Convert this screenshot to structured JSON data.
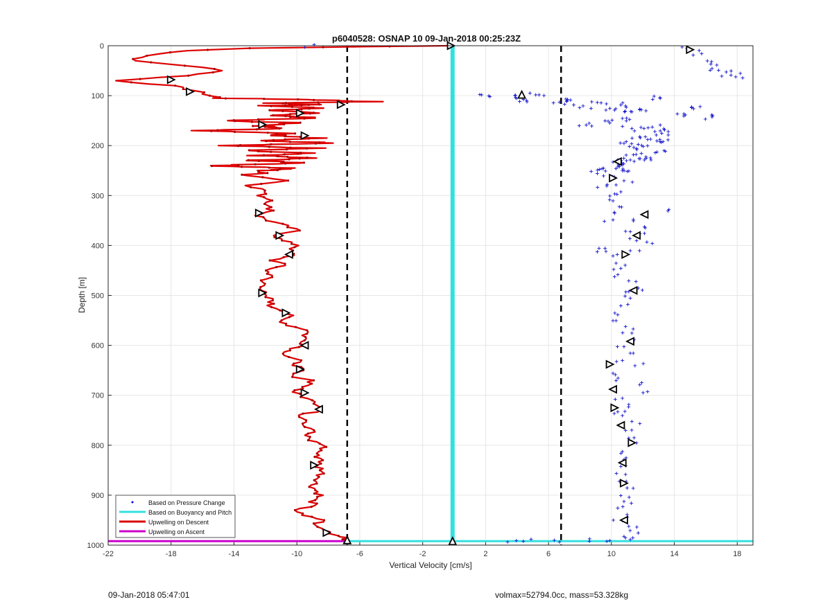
{
  "chart_data": {
    "type": "line",
    "title": "p6040528: OSNAP 10 09-Jan-2018 00:25:23Z",
    "xlabel": "Vertical Velocity [cm/s]",
    "ylabel": "Depth [m]",
    "xlim": [
      -22,
      19
    ],
    "ylim": [
      0,
      1000
    ],
    "y_reversed": true,
    "xticks": [
      -22,
      -18,
      -14,
      -10,
      -6,
      -2,
      2,
      6,
      10,
      14,
      18
    ],
    "yticks": [
      0,
      100,
      200,
      300,
      400,
      500,
      600,
      700,
      800,
      900,
      1000
    ],
    "grid": true,
    "legend": {
      "location": "bottom-left",
      "entries": [
        {
          "label": "Based on Pressure Change",
          "color": "#0000cc",
          "style": "dot"
        },
        {
          "label": "Based on Buoyancy and Pitch",
          "color": "#33e0e0",
          "style": "line"
        },
        {
          "label": "Upwelling on Descent",
          "color": "#dd0000",
          "style": "line"
        },
        {
          "label": "Upwelling on Ascent",
          "color": "#cc00cc",
          "style": "line"
        }
      ]
    },
    "threshold_lines": [
      {
        "x": -6.8,
        "style": "dashed",
        "color": "#000000"
      },
      {
        "x": 6.8,
        "style": "dashed",
        "color": "#000000"
      }
    ],
    "buoyancy_pitch": {
      "descent": {
        "x": [
          -0.1,
          -0.1
        ],
        "y": [
          0,
          993
        ]
      },
      "bottom": {
        "x": [
          -7,
          19
        ],
        "y": [
          992,
          992
        ]
      }
    },
    "upwelling_descent": {
      "depth": [
        0,
        2,
        5,
        10,
        20,
        30,
        40,
        50,
        60,
        70,
        80,
        90,
        100,
        105,
        108,
        112,
        115,
        118,
        120,
        125,
        130,
        135,
        140,
        145,
        150,
        155,
        160,
        165,
        170,
        175,
        180,
        185,
        190,
        195,
        200,
        205,
        210,
        215,
        220,
        225,
        230,
        235,
        240,
        245,
        250,
        260,
        270,
        280,
        290,
        300,
        310,
        320,
        330,
        340,
        350,
        360,
        370,
        380,
        390,
        400,
        410,
        420,
        430,
        440,
        450,
        460,
        470,
        480,
        490,
        500,
        510,
        520,
        530,
        540,
        550,
        560,
        570,
        580,
        590,
        600,
        610,
        620,
        630,
        640,
        650,
        660,
        670,
        680,
        690,
        700,
        710,
        720,
        730,
        740,
        750,
        760,
        770,
        780,
        790,
        800,
        810,
        820,
        830,
        840,
        850,
        860,
        870,
        880,
        890,
        900,
        910,
        920,
        930,
        940,
        950,
        960,
        970,
        980,
        985,
        990
      ],
      "velocity": [
        -0.3,
        -6,
        -13,
        -17,
        -19.5,
        -20.5,
        -17,
        -14.5,
        -17,
        -21.5,
        -18,
        -16.5,
        -15.5,
        -15,
        -9,
        -5.2,
        -12,
        -7.8,
        -12.2,
        -8.2,
        -12,
        -8.8,
        -11.5,
        -8.6,
        -15,
        -9.5,
        -12.8,
        -10.2,
        -16,
        -10.5,
        -11,
        -8.5,
        -12.5,
        -7,
        -14.8,
        -8.8,
        -13.8,
        -9.5,
        -12.5,
        -9.2,
        -13,
        -9.2,
        -15.5,
        -10.5,
        -12,
        -13,
        -10.5,
        -13,
        -12,
        -12.3,
        -11.5,
        -12,
        -11.5,
        -12.5,
        -11.8,
        -10.8,
        -10,
        -11.3,
        -11,
        -9.8,
        -10.5,
        -10.3,
        -11.5,
        -10.8,
        -12,
        -11.5,
        -12.3,
        -12,
        -12.2,
        -12.2,
        -11.5,
        -11.8,
        -10.8,
        -10.5,
        -11,
        -10.5,
        -9.2,
        -9.5,
        -9.5,
        -9.5,
        -10.5,
        -10.7,
        -10,
        -10,
        -9.8,
        -10.5,
        -9,
        -9.2,
        -10.2,
        -9.8,
        -8.8,
        -8.6,
        -8.5,
        -9.8,
        -9.2,
        -9.5,
        -8.8,
        -9.5,
        -9.2,
        -8.2,
        -8.5,
        -8.8,
        -8.3,
        -8.8,
        -8.3,
        -8.5,
        -8.6,
        -9,
        -8.8,
        -8.5,
        -9,
        -9,
        -10,
        -9.8,
        -8.2,
        -9,
        -8.2,
        -7.5,
        -6.8,
        -6.8
      ]
    },
    "pressure_change_points": {
      "x": [
        15,
        14.8,
        15.2,
        16.1,
        16.4,
        17.3,
        17.6,
        17.9,
        18.2,
        16.7,
        -9.5,
        2.2,
        3.9,
        4.4,
        5.4,
        6.7,
        7.4,
        8.2,
        9.1,
        9.9,
        10.6,
        11.3,
        12.2,
        13.1,
        14.6,
        15.1,
        16.4,
        8.4,
        9.6,
        10.7,
        11.3,
        12.6,
        13.2,
        11.8,
        12.9,
        10.8,
        11.6,
        12.3,
        12.9,
        13.6,
        11.4,
        12.2,
        13.1,
        10.1,
        10.7,
        11.2,
        12.2,
        9.5,
        10.4,
        11.1,
        10.2,
        10.8,
        9.1,
        9.7,
        10.3,
        10.6,
        9.9,
        10.1,
        10.5,
        10.2,
        10.1,
        11.4,
        12.1,
        13.6,
        11.2,
        12.1,
        11.6,
        12.6,
        9.1,
        9.6,
        10.1,
        11.2,
        10.3,
        10.6,
        10.2,
        11.1,
        11.7,
        11.1,
        11.2,
        10.6,
        10.4,
        10.3,
        10.9,
        11.3,
        11.4,
        10.8,
        11.2,
        10.7,
        11.5,
        10.1,
        10.3,
        11.8,
        12.3,
        10.7,
        11.1,
        10.4,
        10.7,
        11.3,
        10.9,
        11.1,
        11.6,
        10.7,
        10.8,
        10.6,
        10.9,
        10.5,
        11.0,
        10.6,
        10.8,
        10.4,
        11.0,
        10.7,
        11.1,
        11.7,
        10.8,
        11.2,
        3.4,
        4.4,
        6.7,
        8.6,
        9.9
      ],
      "y": [
        8,
        5,
        18,
        30,
        45,
        52,
        58,
        62,
        55,
        38,
        2,
        100,
        103,
        107,
        98,
        112,
        108,
        120,
        113,
        125,
        118,
        132,
        130,
        105,
        140,
        122,
        142,
        158,
        150,
        145,
        165,
        162,
        175,
        182,
        190,
        195,
        205,
        200,
        212,
        188,
        218,
        225,
        170,
        232,
        238,
        228,
        222,
        245,
        242,
        250,
        262,
        270,
        255,
        280,
        278,
        292,
        300,
        310,
        322,
        335,
        348,
        350,
        362,
        330,
        372,
        375,
        390,
        395,
        412,
        405,
        420,
        410,
        435,
        445,
        462,
        470,
        485,
        492,
        505,
        520,
        538,
        550,
        562,
        575,
        590,
        602,
        615,
        630,
        640,
        655,
        670,
        678,
        692,
        705,
        718,
        732,
        740,
        752,
        770,
        785,
        795,
        812,
        828,
        842,
        858,
        872,
        885,
        900,
        912,
        925,
        938,
        950,
        962,
        975,
        982,
        988,
        993,
        992,
        993,
        992,
        990
      ],
      "pattern": "a smaller random jitter is added to each point so that it looks like a cloud"
    },
    "markers": [
      {
        "x": -0.2,
        "y": 0,
        "dir": "right"
      },
      {
        "x": 4.3,
        "y": 98,
        "dir": "up"
      },
      {
        "x": 15,
        "y": 8,
        "dir": "right"
      },
      {
        "x": -18,
        "y": 68,
        "dir": "right"
      },
      {
        "x": -16.8,
        "y": 92,
        "dir": "right"
      },
      {
        "x": -7.2,
        "y": 118,
        "dir": "right"
      },
      {
        "x": -9.8,
        "y": 135,
        "dir": "right"
      },
      {
        "x": -12.2,
        "y": 158,
        "dir": "right"
      },
      {
        "x": -9.5,
        "y": 180,
        "dir": "right"
      },
      {
        "x": -12.4,
        "y": 335,
        "dir": "right"
      },
      {
        "x": -11.1,
        "y": 380,
        "dir": "right"
      },
      {
        "x": -10.5,
        "y": 418,
        "dir": "left"
      },
      {
        "x": -12.2,
        "y": 495,
        "dir": "right"
      },
      {
        "x": -10.7,
        "y": 535,
        "dir": "right"
      },
      {
        "x": -9.5,
        "y": 600,
        "dir": "left"
      },
      {
        "x": -9.8,
        "y": 648,
        "dir": "right"
      },
      {
        "x": -9.5,
        "y": 695,
        "dir": "right"
      },
      {
        "x": -8.6,
        "y": 728,
        "dir": "left"
      },
      {
        "x": -8.9,
        "y": 840,
        "dir": "right"
      },
      {
        "x": -8.1,
        "y": 975,
        "dir": "right"
      },
      {
        "x": -6.8,
        "y": 990,
        "dir": "up"
      },
      {
        "x": -0.1,
        "y": 992,
        "dir": "up"
      },
      {
        "x": 10.4,
        "y": 232,
        "dir": "left"
      },
      {
        "x": 10.1,
        "y": 265,
        "dir": "right"
      },
      {
        "x": 12.1,
        "y": 338,
        "dir": "left"
      },
      {
        "x": 11.6,
        "y": 380,
        "dir": "left"
      },
      {
        "x": 10.9,
        "y": 418,
        "dir": "right"
      },
      {
        "x": 11.4,
        "y": 490,
        "dir": "left"
      },
      {
        "x": 11.2,
        "y": 592,
        "dir": "left"
      },
      {
        "x": 9.9,
        "y": 638,
        "dir": "right"
      },
      {
        "x": 10.1,
        "y": 688,
        "dir": "left"
      },
      {
        "x": 10.2,
        "y": 725,
        "dir": "right"
      },
      {
        "x": 10.6,
        "y": 760,
        "dir": "left"
      },
      {
        "x": 11.3,
        "y": 795,
        "dir": "right"
      },
      {
        "x": 10.7,
        "y": 835,
        "dir": "left"
      },
      {
        "x": 10.8,
        "y": 876,
        "dir": "right"
      },
      {
        "x": 10.8,
        "y": 950,
        "dir": "left"
      }
    ]
  },
  "footer": {
    "left": "09-Jan-2018 05:47:01",
    "right": "volmax=52794.0cc, mass=53.328kg"
  }
}
